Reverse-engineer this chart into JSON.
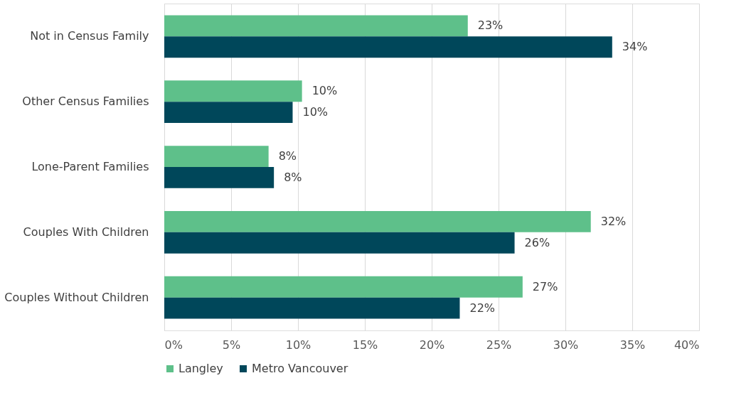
{
  "chart_data": {
    "type": "bar",
    "orientation": "horizontal",
    "categories": [
      "Not in Census Family",
      "Other Census Families",
      "Lone-Parent Families",
      "Couples With Children",
      "Couples Without Children"
    ],
    "series": [
      {
        "name": "Langley",
        "color": "#5ec08a",
        "values": [
          22.7,
          10.3,
          7.8,
          31.9,
          26.8
        ],
        "value_labels": [
          "23%",
          "10%",
          "8%",
          "32%",
          "27%"
        ]
      },
      {
        "name": "Metro Vancouver",
        "color": "#00475a",
        "values": [
          33.5,
          9.6,
          8.2,
          26.2,
          22.1
        ],
        "value_labels": [
          "34%",
          "10%",
          "8%",
          "26%",
          "22%"
        ]
      }
    ],
    "xlim": [
      0,
      40
    ],
    "xticks": [
      {
        "value": 0,
        "label": "0%"
      },
      {
        "value": 5,
        "label": "5%"
      },
      {
        "value": 10,
        "label": "10%"
      },
      {
        "value": 15,
        "label": "15%"
      },
      {
        "value": 20,
        "label": "20%"
      },
      {
        "value": 25,
        "label": "25%"
      },
      {
        "value": 30,
        "label": "30%"
      },
      {
        "value": 35,
        "label": "35%"
      },
      {
        "value": 40,
        "label": "40%"
      }
    ],
    "grid": "x",
    "legend": "bottom"
  }
}
